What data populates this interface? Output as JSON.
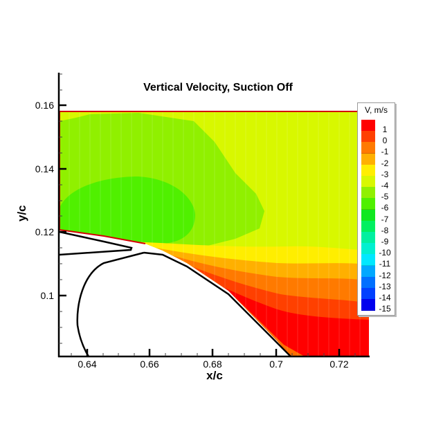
{
  "chart_data": {
    "type": "heatmap",
    "subtype": "filled contour",
    "title": "Vertical Velocity, Suction Off",
    "xlabel": "x/c",
    "ylabel": "y/c",
    "xlim": [
      0.631,
      0.729
    ],
    "ylim": [
      0.081,
      0.17
    ],
    "x_ticks": [
      "0.64",
      "0.66",
      "0.68",
      "0.7",
      "0.72"
    ],
    "y_ticks": [
      "0.1",
      "0.12",
      "0.14",
      "0.16"
    ],
    "grid": false,
    "legend": {
      "title": "V, m/s",
      "position": "right, overlapping plot",
      "levels": [
        {
          "label": "1",
          "color": "#ff0000"
        },
        {
          "label": "0",
          "color": "#ff4000"
        },
        {
          "label": "-1",
          "color": "#ff7a00"
        },
        {
          "label": "-2",
          "color": "#ffb000"
        },
        {
          "label": "-3",
          "color": "#ffee00"
        },
        {
          "label": "-4",
          "color": "#d8f800"
        },
        {
          "label": "-5",
          "color": "#90f000"
        },
        {
          "label": "-6",
          "color": "#50f000"
        },
        {
          "label": "-7",
          "color": "#10e820"
        },
        {
          "label": "-8",
          "color": "#00f060"
        },
        {
          "label": "-9",
          "color": "#00f0a0"
        },
        {
          "label": "-10",
          "color": "#00f0d0"
        },
        {
          "label": "-11",
          "color": "#00e8ff"
        },
        {
          "label": "-12",
          "color": "#00a8ff"
        },
        {
          "label": "-13",
          "color": "#0070ff"
        },
        {
          "label": "-14",
          "color": "#0040ff"
        },
        {
          "label": "-15",
          "color": "#0000ee"
        }
      ]
    },
    "regions": [
      {
        "description": "Upper freestream region",
        "value_range": "-4 to -3",
        "color": "#d8f800"
      },
      {
        "description": "Large area upper-left",
        "value_range": "-5 to -4",
        "color": "#90f000"
      },
      {
        "description": "Core region near x/c 0.635-0.665, y/c 0.118-0.134",
        "value_range": "-6 to -5",
        "color": "#50f000"
      },
      {
        "description": "Band above wake, y/c ~0.11",
        "value_range": "-3 to -2",
        "color": "#ffee00"
      },
      {
        "description": "Lower wake / near trailing surface",
        "value_range": "-2 to 1",
        "colors": [
          "#ffb000",
          "#ff7a00",
          "#ff4000",
          "#ff0000"
        ]
      }
    ],
    "annotations": [
      "Measurement domain bounded by red line at y/c = 0.158",
      "Airfoil/flap geometry drawn in black"
    ]
  }
}
